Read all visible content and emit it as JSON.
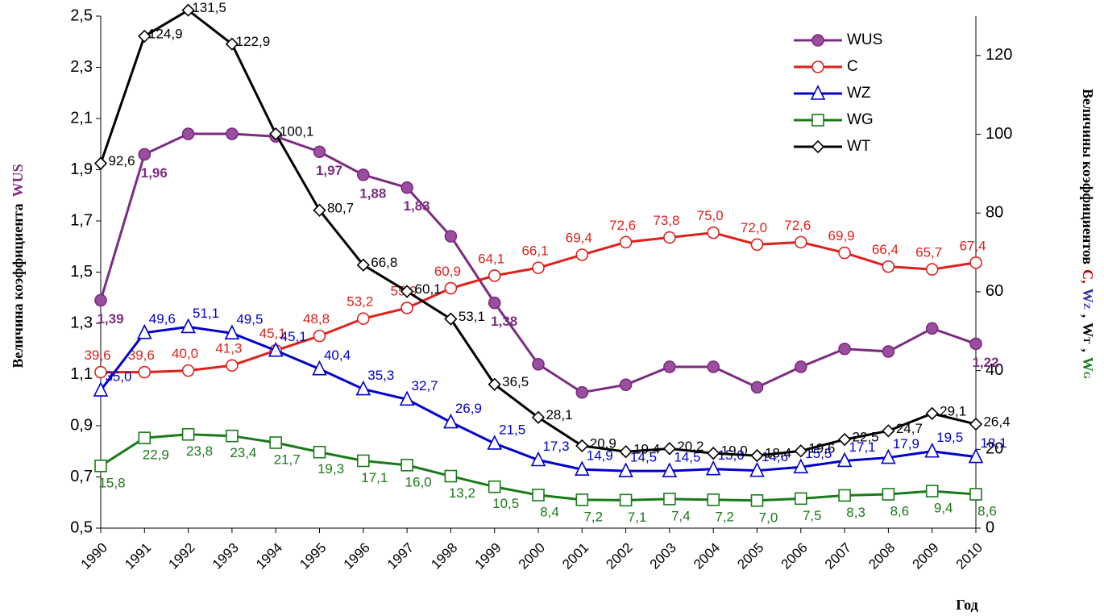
{
  "chart_data": {
    "type": "line",
    "categories": [
      "1990",
      "1991",
      "1992",
      "1993",
      "1994",
      "1995",
      "1996",
      "1997",
      "1998",
      "1999",
      "2000",
      "2001",
      "2002",
      "2003",
      "2004",
      "2005",
      "2006",
      "2007",
      "2008",
      "2009",
      "2010"
    ],
    "ylabel_parts": [
      {
        "text": "Величина коэффициента",
        "color": "#000000"
      },
      {
        "text": "WUS",
        "color": "#7b2c80"
      }
    ],
    "y2label_parts": [
      {
        "text": "Величины коэффициентов",
        "color": "#000000"
      },
      {
        "text": "C,",
        "color": "#c00000"
      },
      {
        "text": "W",
        "color": "#3030a0"
      },
      {
        "text": "Z",
        "color": "#3030a0",
        "sub": true
      },
      {
        "text": ",",
        "color": "#000000"
      },
      {
        "text": "W",
        "color": "#000000"
      },
      {
        "text": "T",
        "color": "#000000",
        "sub": true
      },
      {
        "text": ",",
        "color": "#000000"
      },
      {
        "text": "W",
        "color": "#1a7a1a"
      },
      {
        "text": "G",
        "color": "#1a7a1a",
        "sub": true
      }
    ],
    "xlabel": "Год",
    "ylim": [
      0.5,
      2.5
    ],
    "yticks": [
      {
        "value": 0.5,
        "label": "0,5"
      },
      {
        "value": 0.7,
        "label": "0,7"
      },
      {
        "value": 0.9,
        "label": "0,9"
      },
      {
        "value": 1.1,
        "label": "1,1"
      },
      {
        "value": 1.3,
        "label": "1,3"
      },
      {
        "value": 1.5,
        "label": "1,5"
      },
      {
        "value": 1.7,
        "label": "1,7"
      },
      {
        "value": 1.9,
        "label": "1,9"
      },
      {
        "value": 2.1,
        "label": "2,1"
      },
      {
        "value": 2.3,
        "label": "2,3"
      },
      {
        "value": 2.5,
        "label": "2,5"
      }
    ],
    "y2lim": [
      0,
      130
    ],
    "y2ticks": [
      0,
      20,
      40,
      60,
      80,
      100,
      120
    ],
    "legend": "upper right",
    "series": [
      {
        "name": "WUS",
        "color": "#7b2c80",
        "marker": "circle",
        "marker_fill": "#9b4ea0",
        "axis": "y",
        "values": [
          1.39,
          1.96,
          2.04,
          2.04,
          2.03,
          1.97,
          1.88,
          1.83,
          1.64,
          1.38,
          1.14,
          1.03,
          1.06,
          1.13,
          1.13,
          1.05,
          1.13,
          1.2,
          1.19,
          1.28,
          1.22
        ],
        "value_labels": [
          "1,39",
          "1,96",
          null,
          null,
          null,
          "1,97",
          "1,88",
          "1,83",
          null,
          "1,38",
          null,
          null,
          null,
          null,
          null,
          null,
          null,
          null,
          null,
          null,
          "1,22"
        ]
      },
      {
        "name": "C",
        "color": "#e0201b",
        "marker": "circle",
        "marker_fill": "#ffffff",
        "axis": "y2",
        "values": [
          39.6,
          39.6,
          40.0,
          41.3,
          45.1,
          48.8,
          53.2,
          55.9,
          60.9,
          64.1,
          66.1,
          69.4,
          72.6,
          73.8,
          75.0,
          72.0,
          72.6,
          69.9,
          66.4,
          65.7,
          67.4
        ],
        "value_labels": [
          "39,6",
          "39,6",
          "40,0",
          "41,3",
          "45,1",
          "48,8",
          "53,2",
          "55,9",
          "60,9",
          "64,1",
          "66,1",
          "69,4",
          "72,6",
          "73,8",
          "75,0",
          "72,0",
          "72,6",
          "69,9",
          "66,4",
          "65,7",
          "67,4"
        ]
      },
      {
        "name": "WZ",
        "color": "#0000cc",
        "marker": "triangle",
        "marker_fill": "#ffffff",
        "axis": "y2",
        "values": [
          35.0,
          49.6,
          51.1,
          49.5,
          45.1,
          40.4,
          35.3,
          32.7,
          26.9,
          21.5,
          17.3,
          14.9,
          14.5,
          14.5,
          15.0,
          14.6,
          15.5,
          17.1,
          17.9,
          19.5,
          18.1
        ],
        "value_labels": [
          "35,0",
          "49,6",
          "51,1",
          "49,5",
          "45,1",
          "40,4",
          "35,3",
          "32,7",
          "26,9",
          "21,5",
          "17,3",
          "14,9",
          "14,5",
          "14,5",
          "15,0",
          "14,6",
          "15,5",
          "17,1",
          "17,9",
          "19,5",
          "18,1"
        ]
      },
      {
        "name": "WG",
        "color": "#1a7a1a",
        "marker": "square",
        "marker_fill": "#ffffff",
        "axis": "y2",
        "values": [
          15.8,
          22.9,
          23.8,
          23.4,
          21.7,
          19.3,
          17.1,
          16.0,
          13.2,
          10.5,
          8.4,
          7.2,
          7.1,
          7.4,
          7.2,
          7.0,
          7.5,
          8.3,
          8.6,
          9.4,
          8.6
        ],
        "value_labels": [
          "15,8",
          "22,9",
          "23,8",
          "23,4",
          "21,7",
          "19,3",
          "17,1",
          "16,0",
          "13,2",
          "10,5",
          "8,4",
          "7,2",
          "7,1",
          "7,4",
          "7,2",
          "7,0",
          "7,5",
          "8,3",
          "8,6",
          "9,4",
          "8,6"
        ]
      },
      {
        "name": "WT",
        "color": "#000000",
        "marker": "diamond",
        "marker_fill": "#ffffff",
        "axis": "y2",
        "values": [
          92.6,
          124.9,
          131.5,
          122.9,
          100.1,
          80.7,
          66.8,
          60.1,
          53.1,
          36.5,
          28.1,
          20.9,
          19.4,
          20.2,
          19.0,
          18.4,
          19.6,
          22.5,
          24.7,
          29.1,
          26.4
        ],
        "value_labels": [
          "92,6",
          "124,9",
          "131,5",
          "122,9",
          "100,1",
          "80,7",
          "66,8",
          "60,1",
          "53,1",
          "36,5",
          "28,1",
          "20,9",
          "19,4",
          "20,2",
          "19,0",
          "18,4",
          "19,6",
          "22,5",
          "24,7",
          "29,1",
          "26,4"
        ]
      }
    ]
  }
}
